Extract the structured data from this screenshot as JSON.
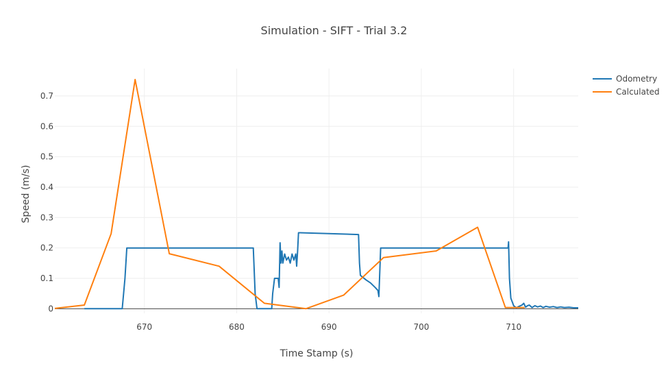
{
  "chart_data": {
    "type": "line",
    "title": "Simulation - SIFT - Trial 3.2",
    "xlabel": "Time Stamp (s)",
    "ylabel": "Speed (m/s)",
    "xlim": [
      660.3,
      717.0
    ],
    "ylim": [
      -0.015,
      0.79
    ],
    "xticks": [
      670,
      680,
      690,
      700,
      710
    ],
    "yticks": [
      0,
      0.1,
      0.2,
      0.3,
      0.4,
      0.5,
      0.6,
      0.7
    ],
    "xtick_labels": [
      "670",
      "680",
      "690",
      "700",
      "710"
    ],
    "ytick_labels": [
      "0",
      "0.1",
      "0.2",
      "0.3",
      "0.4",
      "0.5",
      "0.6",
      "0.7"
    ],
    "grid": true,
    "legend_position": "top-right",
    "series": [
      {
        "name": "Odometry",
        "color": "#1f77b4",
        "x": [
          663.5,
          667.6,
          667.9,
          668.1,
          681.8,
          682.0,
          682.2,
          683.8,
          683.9,
          684.1,
          684.5,
          684.6,
          684.7,
          684.8,
          684.9,
          685.0,
          685.2,
          685.4,
          685.6,
          685.8,
          686.0,
          686.2,
          686.4,
          686.5,
          686.6,
          686.7,
          686.9,
          693.2,
          693.3,
          693.4,
          693.6,
          694.0,
          694.5,
          695.0,
          695.3,
          695.4,
          695.6,
          709.4,
          709.45,
          709.55,
          709.7,
          710.0,
          710.3,
          710.6,
          710.9,
          711.1,
          711.3,
          711.5,
          711.7,
          712.0,
          712.3,
          712.6,
          712.9,
          713.2,
          713.5,
          713.9,
          714.3,
          714.7,
          715.1,
          715.5,
          716.0,
          716.5,
          717.0
        ],
        "y": [
          0,
          0,
          0.1,
          0.2,
          0.2,
          0.05,
          0,
          0,
          0.05,
          0.1,
          0.1,
          0.07,
          0.217,
          0.15,
          0.19,
          0.15,
          0.18,
          0.16,
          0.17,
          0.15,
          0.18,
          0.16,
          0.18,
          0.14,
          0.19,
          0.25,
          0.25,
          0.244,
          0.15,
          0.11,
          0.105,
          0.095,
          0.085,
          0.07,
          0.06,
          0.04,
          0.2,
          0.2,
          0.22,
          0.1,
          0.035,
          0.01,
          0.003,
          0.008,
          0.012,
          0.018,
          0.005,
          0.01,
          0.012,
          0.004,
          0.01,
          0.006,
          0.009,
          0.004,
          0.008,
          0.005,
          0.007,
          0.004,
          0.006,
          0.004,
          0.005,
          0.003,
          0.003
        ]
      },
      {
        "name": "Calculated",
        "color": "#ff7f0e",
        "x": [
          660.3,
          663.5,
          666.4,
          669.0,
          672.7,
          678.1,
          683.0,
          687.5,
          691.6,
          695.9,
          701.6,
          706.1,
          709.1,
          711.2
        ],
        "y": [
          0.001,
          0.012,
          0.247,
          0.754,
          0.181,
          0.14,
          0.018,
          0.0,
          0.045,
          0.168,
          0.19,
          0.268,
          0.004,
          0.004
        ]
      }
    ]
  }
}
